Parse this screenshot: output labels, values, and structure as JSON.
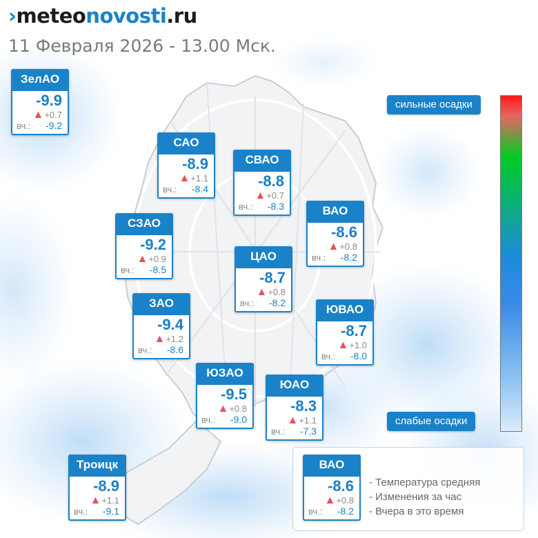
{
  "brand": {
    "chevron": "›",
    "part1": "meteo",
    "part2": "novosti",
    "part3": ".ru"
  },
  "subtitle": "11 Февраля 2026 - 13.00 Мск.",
  "yesterday_label": "вч.:",
  "change_icon": "triangle-up-icon",
  "districts": [
    {
      "name": "ЗелАО",
      "temp": "-9.9",
      "change": "+0.7",
      "yesterday": "-9.2"
    },
    {
      "name": "САО",
      "temp": "-8.9",
      "change": "+1.1",
      "yesterday": "-8.4"
    },
    {
      "name": "СВАО",
      "temp": "-8.8",
      "change": "+0.7",
      "yesterday": "-8.3"
    },
    {
      "name": "ВАО",
      "temp": "-8.6",
      "change": "+0.8",
      "yesterday": "-8.2"
    },
    {
      "name": "СЗАО",
      "temp": "-9.2",
      "change": "+0.9",
      "yesterday": "-8.5"
    },
    {
      "name": "ЦАО",
      "temp": "-8.7",
      "change": "+0.8",
      "yesterday": "-8.2"
    },
    {
      "name": "ЗАО",
      "temp": "-9.4",
      "change": "+1.2",
      "yesterday": "-8.6"
    },
    {
      "name": "ЮВАО",
      "temp": "-8.7",
      "change": "+1.0",
      "yesterday": "-8.0"
    },
    {
      "name": "ЮЗАО",
      "temp": "-9.5",
      "change": "+0.8",
      "yesterday": "-9.0"
    },
    {
      "name": "ЮАО",
      "temp": "-8.3",
      "change": "+1.1",
      "yesterday": "-7.3"
    },
    {
      "name": "Троицк",
      "temp": "-8.9",
      "change": "+1.1",
      "yesterday": "-9.1"
    }
  ],
  "scale": {
    "top_label": "сильные осадки",
    "bottom_label": "слабые осадки",
    "colors": [
      "#ff1a1a",
      "#00cc22",
      "#1c8cdc",
      "#dcecfa"
    ]
  },
  "legend": {
    "example": {
      "name": "ВАО",
      "temp": "-8.6",
      "change": "+0.8",
      "yesterday": "-8.2"
    },
    "lines": [
      "- Температура средняя",
      "- Изменения за час",
      "- Вчера в это время"
    ]
  },
  "colors": {
    "accent": "#1a82c9",
    "temp_text": "#1a7fc4",
    "triangle": "#e8505b"
  }
}
